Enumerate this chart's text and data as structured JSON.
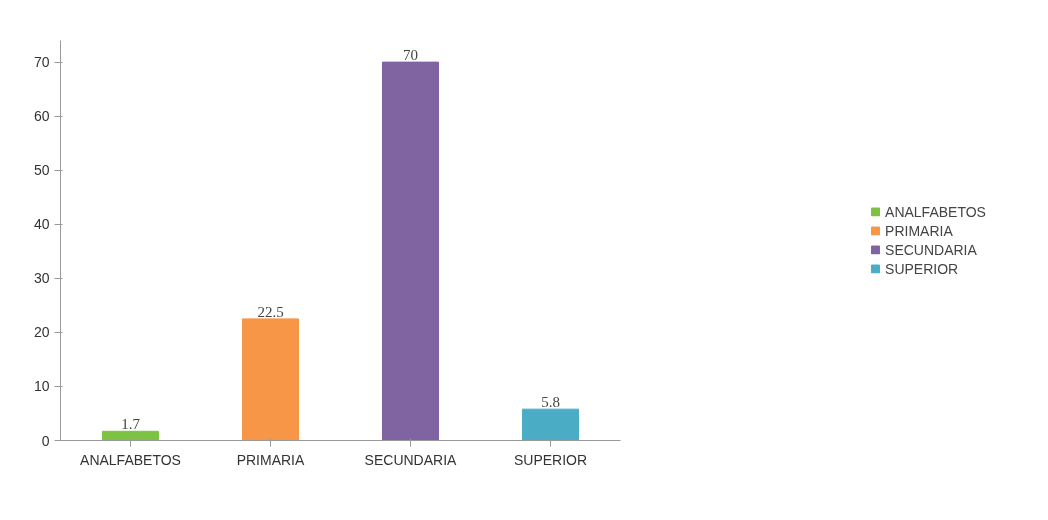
{
  "chart_data": {
    "type": "bar",
    "categories": [
      "ANALFABETOS",
      "PRIMARIA",
      "SECUNDARIA",
      "SUPERIOR"
    ],
    "series": [
      {
        "name": "ANALFABETOS",
        "color": "#7dc242",
        "values": [
          1.7,
          null,
          null,
          null
        ]
      },
      {
        "name": "PRIMARIA",
        "color": "#f79646",
        "values": [
          null,
          22.5,
          null,
          null
        ]
      },
      {
        "name": "SECUNDARIA",
        "color": "#8064a2",
        "values": [
          null,
          null,
          70,
          null
        ]
      },
      {
        "name": "SUPERIOR",
        "color": "#4bacc6",
        "values": [
          null,
          null,
          null,
          5.8
        ]
      }
    ],
    "ylim": [
      0,
      74
    ],
    "yticks": [
      0,
      10,
      20,
      30,
      40,
      50,
      60,
      70
    ],
    "grid": false,
    "legend": "right",
    "data_labels": true
  }
}
